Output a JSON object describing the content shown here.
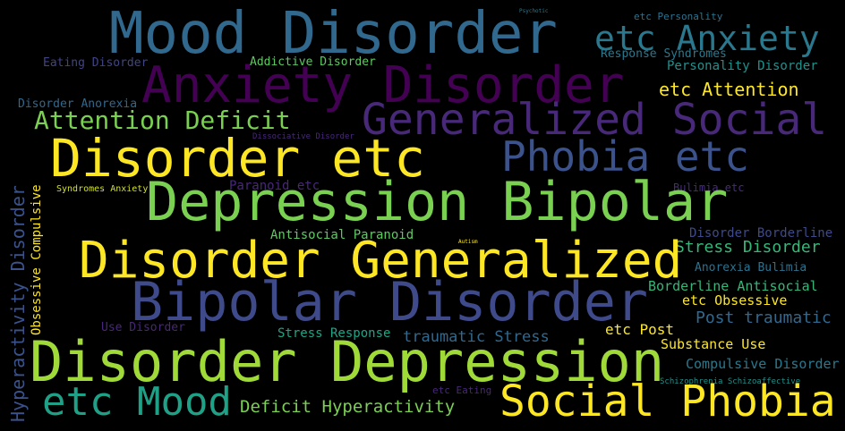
{
  "cloud": {
    "words": [
      {
        "text": "Mood Disorder",
        "color": "#31688e"
      },
      {
        "text": "etc Anxiety",
        "color": "#2a788e"
      },
      {
        "text": "Eating Disorder",
        "color": "#414487"
      },
      {
        "text": "Addictive Disorder",
        "color": "#5ec962"
      },
      {
        "text": "Response Syndromes",
        "color": "#2a788e"
      },
      {
        "text": "Personality Disorder",
        "color": "#21918c"
      },
      {
        "text": "Anxiety Disorder",
        "color": "#440154"
      },
      {
        "text": "etc Attention",
        "color": "#fde725"
      },
      {
        "text": "Disorder Anorexia",
        "color": "#31688e"
      },
      {
        "text": "Attention Deficit",
        "color": "#7ad151"
      },
      {
        "text": "Generalized Social",
        "color": "#482878"
      },
      {
        "text": "Dissociative Disorder",
        "color": "#482878"
      },
      {
        "text": "Disorder etc",
        "color": "#fde725"
      },
      {
        "text": "Phobia etc",
        "color": "#3b528b"
      },
      {
        "text": "Syndromes Anxiety",
        "color": "#d2e21b"
      },
      {
        "text": "Paranoid etc",
        "color": "#482878"
      },
      {
        "text": "Bulimia etc",
        "color": "#472c7a"
      },
      {
        "text": "Depression Bipolar",
        "color": "#7ad151"
      },
      {
        "text": "Antisocial Paranoid",
        "color": "#5ec962"
      },
      {
        "text": "Disorder Borderline",
        "color": "#3e4a89"
      },
      {
        "text": "Stress Disorder",
        "color": "#35b779"
      },
      {
        "text": "Disorder Generalized",
        "color": "#fde725"
      },
      {
        "text": "Anorexia Bulimia",
        "color": "#2c728e"
      },
      {
        "text": "Borderline Antisocial",
        "color": "#35b779"
      },
      {
        "text": "Bipolar Disorder",
        "color": "#3e4a89"
      },
      {
        "text": "etc Obsessive",
        "color": "#fde725"
      },
      {
        "text": "Post traumatic",
        "color": "#31688e"
      },
      {
        "text": "Use Disorder",
        "color": "#482878"
      },
      {
        "text": "Stress Response",
        "color": "#20a486"
      },
      {
        "text": "traumatic Stress",
        "color": "#31688e"
      },
      {
        "text": "etc Post",
        "color": "#fde725"
      },
      {
        "text": "Substance Use",
        "color": "#fde725"
      },
      {
        "text": "Disorder Depression",
        "color": "#a0da39"
      },
      {
        "text": "Compulsive Disorder",
        "color": "#2a788e"
      },
      {
        "text": "etc Eating",
        "color": "#482878"
      },
      {
        "text": "Schizophrenia Schizoaffective",
        "color": "#21918c"
      },
      {
        "text": "etc Mood",
        "color": "#1fa187"
      },
      {
        "text": "Deficit Hyperactivity",
        "color": "#7ad151"
      },
      {
        "text": "Social Phobia",
        "color": "#fde725"
      },
      {
        "text": "Hyperactivity Disorder",
        "color": "#3b528b"
      },
      {
        "text": "Obsessive Compulsive",
        "color": "#fde725"
      },
      {
        "text": "Psychotic",
        "color": "#2a788e"
      },
      {
        "text": "etc Personality",
        "color": "#2c728e"
      },
      {
        "text": "Autism",
        "color": "#fde725"
      }
    ]
  }
}
